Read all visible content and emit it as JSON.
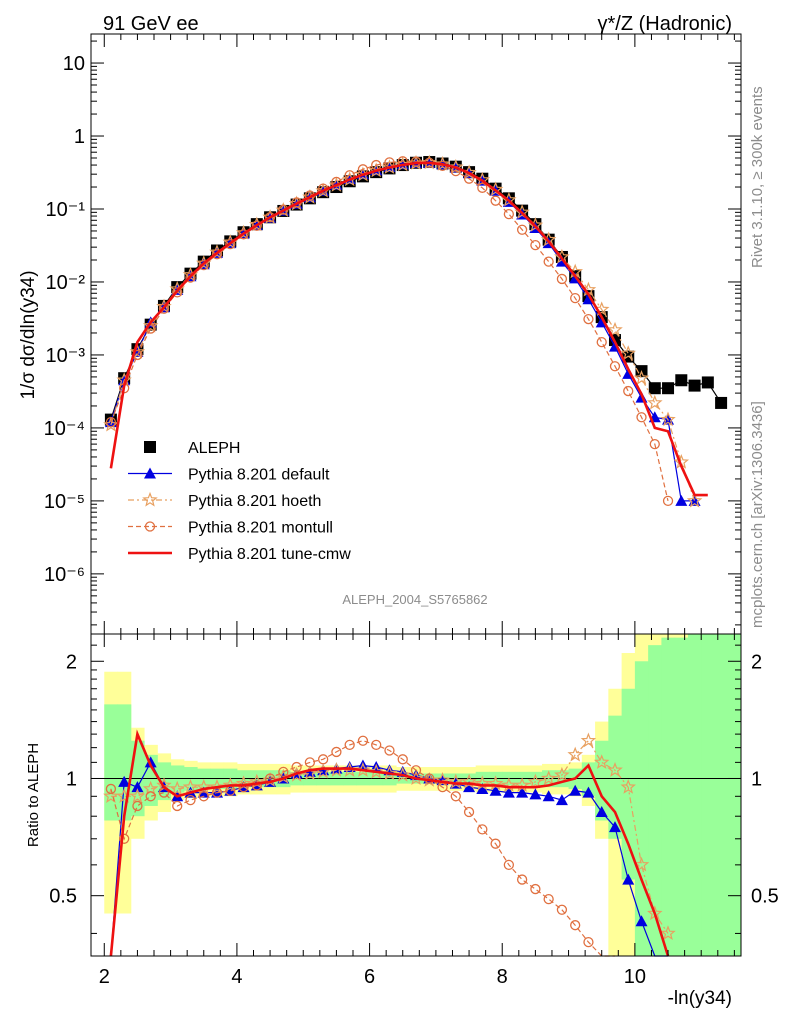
{
  "header": {
    "left": "91 GeV ee",
    "right": "γ*/Z (Hadronic)"
  },
  "side_labels": {
    "rivet": "Rivet 3.1.10, ≥ 300k events",
    "mcplots": "mcplots.cern.ch [arXiv:1306.3436]"
  },
  "analysis_id": "ALEPH_2004_S5765862",
  "chart_data": [
    {
      "type": "line",
      "panel": "main",
      "ylabel": "1/σ dσ/dln(y34)",
      "yscale": "log",
      "ylim": [
        1.5e-07,
        25
      ],
      "xlim": [
        1.8,
        11.6
      ],
      "ytick_labels": [
        "10⁻⁶",
        "10⁻⁵",
        "10⁻⁴",
        "10⁻³",
        "10⁻²",
        "10⁻¹",
        "1",
        "10"
      ],
      "legend_position": "lower-left",
      "x": [
        2.1,
        2.3,
        2.5,
        2.7,
        2.9,
        3.1,
        3.3,
        3.5,
        3.7,
        3.9,
        4.1,
        4.3,
        4.5,
        4.7,
        4.9,
        5.1,
        5.3,
        5.5,
        5.7,
        5.9,
        6.1,
        6.3,
        6.5,
        6.7,
        6.9,
        7.1,
        7.3,
        7.5,
        7.7,
        7.9,
        8.1,
        8.3,
        8.5,
        8.7,
        8.9,
        9.1,
        9.3,
        9.5,
        9.7,
        9.9,
        10.1,
        10.3,
        10.5,
        10.7,
        10.9,
        11.1,
        11.3
      ],
      "series": [
        {
          "name": "ALEPH",
          "color": "#000000",
          "marker": "square",
          "values": [
            0.00013,
            0.00048,
            0.0012,
            0.0026,
            0.0047,
            0.0085,
            0.013,
            0.019,
            0.027,
            0.036,
            0.048,
            0.062,
            0.077,
            0.094,
            0.115,
            0.14,
            0.17,
            0.2,
            0.24,
            0.28,
            0.32,
            0.36,
            0.4,
            0.43,
            0.44,
            0.42,
            0.38,
            0.32,
            0.26,
            0.19,
            0.14,
            0.095,
            0.062,
            0.038,
            0.022,
            0.012,
            0.0064,
            0.0033,
            0.0016,
            0.00095,
            0.0006,
            0.00035,
            0.00035,
            0.00045,
            0.00038,
            0.00042,
            0.00022
          ]
        },
        {
          "name": "Pythia 8.201 default",
          "color": "#0000e0",
          "marker": "triangle",
          "dash": "",
          "values": [
            0.00012,
            0.00045,
            0.0011,
            0.0028,
            0.0045,
            0.0078,
            0.012,
            0.0175,
            0.025,
            0.034,
            0.046,
            0.06,
            0.076,
            0.095,
            0.118,
            0.145,
            0.178,
            0.215,
            0.258,
            0.3,
            0.34,
            0.378,
            0.41,
            0.428,
            0.43,
            0.41,
            0.37,
            0.31,
            0.245,
            0.178,
            0.125,
            0.084,
            0.055,
            0.034,
            0.019,
            0.0112,
            0.0058,
            0.0028,
            0.0013,
            0.00055,
            0.00026,
            0.00014,
            0.00013,
            1e-05,
            1e-05,
            null,
            null
          ]
        },
        {
          "name": "Pythia 8.201 hoeth",
          "color": "#e8a060",
          "marker": "star",
          "dash": "6,3,2,3",
          "values": [
            0.00011,
            0.00045,
            0.0011,
            0.0025,
            0.0046,
            0.008,
            0.0125,
            0.018,
            0.0255,
            0.035,
            0.047,
            0.061,
            0.077,
            0.096,
            0.118,
            0.145,
            0.177,
            0.212,
            0.253,
            0.295,
            0.335,
            0.372,
            0.405,
            0.425,
            0.43,
            0.412,
            0.375,
            0.315,
            0.25,
            0.185,
            0.133,
            0.09,
            0.06,
            0.038,
            0.022,
            0.0138,
            0.0078,
            0.0042,
            0.0022,
            0.00105,
            0.00048,
            0.00022,
            0.00013,
            3.4e-05,
            1e-05,
            null,
            null
          ]
        },
        {
          "name": "Pythia 8.201 montull",
          "color": "#e07040",
          "marker": "circle",
          "dash": "5,3",
          "values": [
            0.00012,
            0.00035,
            0.001,
            0.0023,
            0.0043,
            0.0072,
            0.0115,
            0.017,
            0.024,
            0.033,
            0.045,
            0.059,
            0.077,
            0.098,
            0.123,
            0.153,
            0.19,
            0.235,
            0.29,
            0.35,
            0.4,
            0.435,
            0.45,
            0.445,
            0.43,
            0.39,
            0.33,
            0.26,
            0.195,
            0.13,
            0.085,
            0.052,
            0.032,
            0.019,
            0.011,
            0.006,
            0.0031,
            0.0015,
            0.0007,
            0.00032,
            0.00014,
            6e-05,
            1e-05,
            null,
            null,
            null,
            null
          ]
        },
        {
          "name": "Pythia 8.201 tune-cmw",
          "color": "#ee1111",
          "marker": "none",
          "dash": "",
          "values": [
            2.8e-05,
            0.00038,
            0.0015,
            0.0028,
            0.0045,
            0.0076,
            0.012,
            0.018,
            0.025,
            0.034,
            0.046,
            0.06,
            0.077,
            0.095,
            0.118,
            0.145,
            0.178,
            0.212,
            0.253,
            0.295,
            0.335,
            0.37,
            0.402,
            0.425,
            0.43,
            0.41,
            0.37,
            0.31,
            0.245,
            0.18,
            0.13,
            0.088,
            0.058,
            0.036,
            0.021,
            0.012,
            0.0068,
            0.0033,
            0.0015,
            0.00064,
            0.00029,
            0.0001,
            9e-05,
            3e-05,
            1.2e-05,
            1.2e-05,
            null
          ]
        }
      ]
    },
    {
      "type": "line",
      "panel": "ratio",
      "ylabel": "Ratio to ALEPH",
      "xlabel": "-ln(y34)",
      "ylim": [
        0.35,
        2.35
      ],
      "xlim": [
        1.8,
        11.6
      ],
      "ytick_labels": [
        "0.5",
        "1",
        "2"
      ],
      "xtick_labels": [
        "2",
        "4",
        "6",
        "8",
        "10"
      ],
      "x": [
        2.1,
        2.3,
        2.5,
        2.7,
        2.9,
        3.1,
        3.3,
        3.5,
        3.7,
        3.9,
        4.1,
        4.3,
        4.5,
        4.7,
        4.9,
        5.1,
        5.3,
        5.5,
        5.7,
        5.9,
        6.1,
        6.3,
        6.5,
        6.7,
        6.9,
        7.1,
        7.3,
        7.5,
        7.7,
        7.9,
        8.1,
        8.3,
        8.5,
        8.7,
        8.9,
        9.1,
        9.3,
        9.5,
        9.7,
        9.9,
        10.1,
        10.3,
        10.5,
        10.7,
        10.9
      ],
      "band_bins": [
        1.8,
        2.0,
        2.2,
        2.4,
        2.6,
        2.8,
        3.0,
        3.2,
        3.4,
        3.6,
        3.8,
        4.0,
        4.2,
        4.4,
        4.6,
        4.8,
        5.0,
        5.2,
        5.4,
        5.6,
        5.8,
        6.0,
        6.2,
        6.4,
        6.6,
        6.8,
        7.0,
        7.2,
        7.4,
        7.6,
        7.8,
        8.0,
        8.2,
        8.4,
        8.6,
        8.8,
        9.0,
        9.2,
        9.4,
        9.6,
        9.8,
        10.0,
        10.2,
        10.4,
        10.6,
        10.8,
        11.0,
        11.2,
        11.6
      ],
      "band_stat_low": [
        null,
        0.78,
        0.78,
        0.8,
        0.85,
        0.88,
        0.92,
        0.93,
        0.94,
        0.94,
        0.94,
        0.95,
        0.95,
        0.95,
        0.95,
        0.96,
        0.96,
        0.96,
        0.96,
        0.96,
        0.96,
        0.96,
        0.96,
        0.97,
        0.97,
        0.97,
        0.97,
        0.97,
        0.97,
        0.96,
        0.96,
        0.96,
        0.96,
        0.96,
        0.95,
        0.95,
        0.94,
        0.9,
        0.78,
        0.7,
        0.55,
        0.35,
        0.35,
        0.35,
        0.35,
        0.35,
        0.35,
        0.35,
        null
      ],
      "band_stat_high": [
        null,
        1.55,
        1.55,
        1.25,
        1.15,
        1.1,
        1.08,
        1.07,
        1.06,
        1.06,
        1.06,
        1.05,
        1.05,
        1.05,
        1.05,
        1.04,
        1.04,
        1.04,
        1.04,
        1.04,
        1.04,
        1.04,
        1.04,
        1.03,
        1.03,
        1.03,
        1.03,
        1.03,
        1.03,
        1.04,
        1.04,
        1.04,
        1.04,
        1.04,
        1.05,
        1.05,
        1.06,
        1.1,
        1.25,
        1.45,
        1.7,
        2.0,
        2.2,
        2.3,
        2.3,
        2.35,
        2.35,
        2.35,
        null
      ],
      "band_sys_low": [
        null,
        0.45,
        0.45,
        0.7,
        0.78,
        0.82,
        0.88,
        0.89,
        0.9,
        0.9,
        0.9,
        0.91,
        0.91,
        0.91,
        0.91,
        0.92,
        0.92,
        0.92,
        0.92,
        0.92,
        0.92,
        0.92,
        0.92,
        0.93,
        0.93,
        0.93,
        0.93,
        0.93,
        0.93,
        0.92,
        0.92,
        0.92,
        0.92,
        0.92,
        0.91,
        0.91,
        0.9,
        0.85,
        0.7,
        0.35,
        0.35,
        0.35,
        0.35,
        0.35,
        0.35,
        0.35,
        0.35,
        0.35,
        null
      ],
      "band_sys_high": [
        null,
        1.88,
        1.88,
        1.35,
        1.22,
        1.16,
        1.12,
        1.11,
        1.1,
        1.1,
        1.1,
        1.09,
        1.09,
        1.09,
        1.09,
        1.08,
        1.08,
        1.08,
        1.08,
        1.08,
        1.08,
        1.08,
        1.08,
        1.07,
        1.07,
        1.07,
        1.07,
        1.07,
        1.07,
        1.08,
        1.08,
        1.08,
        1.08,
        1.08,
        1.09,
        1.09,
        1.1,
        1.15,
        1.4,
        1.7,
        2.1,
        2.35,
        2.35,
        2.35,
        2.35,
        2.35,
        2.35,
        2.35,
        null
      ],
      "series": [
        {
          "name": "Pythia 8.201 default",
          "color": "#0000e0",
          "marker": "triangle",
          "dash": "",
          "values": [
            0.35,
            0.98,
            0.95,
            1.1,
            0.95,
            0.9,
            0.92,
            0.92,
            0.92,
            0.93,
            0.95,
            0.96,
            0.98,
            1.0,
            1.03,
            1.04,
            1.05,
            1.06,
            1.07,
            1.08,
            1.07,
            1.05,
            1.04,
            1.02,
            1.0,
            0.99,
            0.97,
            0.95,
            0.94,
            0.93,
            0.92,
            0.92,
            0.91,
            0.9,
            0.88,
            0.93,
            0.92,
            0.82,
            0.75,
            0.55,
            0.43,
            0.35,
            0.35,
            null,
            null
          ]
        },
        {
          "name": "Pythia 8.201 hoeth",
          "color": "#e8a060",
          "marker": "star",
          "dash": "6,3,2,3",
          "values": [
            0.9,
            0.9,
            0.9,
            0.94,
            0.96,
            0.94,
            0.95,
            0.95,
            0.95,
            0.96,
            0.97,
            0.98,
            0.99,
            1.01,
            1.02,
            1.03,
            1.04,
            1.05,
            1.05,
            1.05,
            1.04,
            1.03,
            1.02,
            1.0,
            0.99,
            0.99,
            0.98,
            0.98,
            0.97,
            0.97,
            0.96,
            0.96,
            0.98,
            1.0,
            1.02,
            1.15,
            1.25,
            1.1,
            1.05,
            0.95,
            0.6,
            0.45,
            0.4,
            null,
            null
          ]
        },
        {
          "name": "Pythia 8.201 montull",
          "color": "#e07040",
          "marker": "circle",
          "dash": "5,3",
          "values": [
            0.94,
            0.7,
            0.85,
            0.9,
            0.92,
            0.85,
            0.88,
            0.9,
            0.92,
            0.93,
            0.95,
            0.96,
            1.0,
            1.04,
            1.07,
            1.1,
            1.12,
            1.17,
            1.22,
            1.25,
            1.22,
            1.18,
            1.12,
            1.05,
            1.0,
            0.95,
            0.9,
            0.82,
            0.74,
            0.68,
            0.6,
            0.55,
            0.52,
            0.49,
            0.46,
            0.42,
            0.38,
            0.35,
            0.35,
            null,
            null,
            null,
            null,
            null,
            null
          ]
        },
        {
          "name": "Pythia 8.201 tune-cmw",
          "color": "#ee1111",
          "marker": "none",
          "dash": "",
          "values": [
            0.35,
            0.8,
            1.3,
            1.08,
            0.95,
            0.9,
            0.92,
            0.94,
            0.95,
            0.96,
            0.96,
            0.97,
            0.98,
            1.0,
            1.03,
            1.05,
            1.06,
            1.06,
            1.06,
            1.05,
            1.04,
            1.03,
            1.02,
            1.0,
            0.99,
            0.98,
            0.97,
            0.97,
            0.96,
            0.96,
            0.95,
            0.95,
            0.95,
            0.96,
            0.98,
            1.0,
            1.08,
            0.9,
            0.82,
            0.68,
            0.55,
            0.45,
            0.35,
            null,
            null
          ]
        }
      ]
    }
  ]
}
